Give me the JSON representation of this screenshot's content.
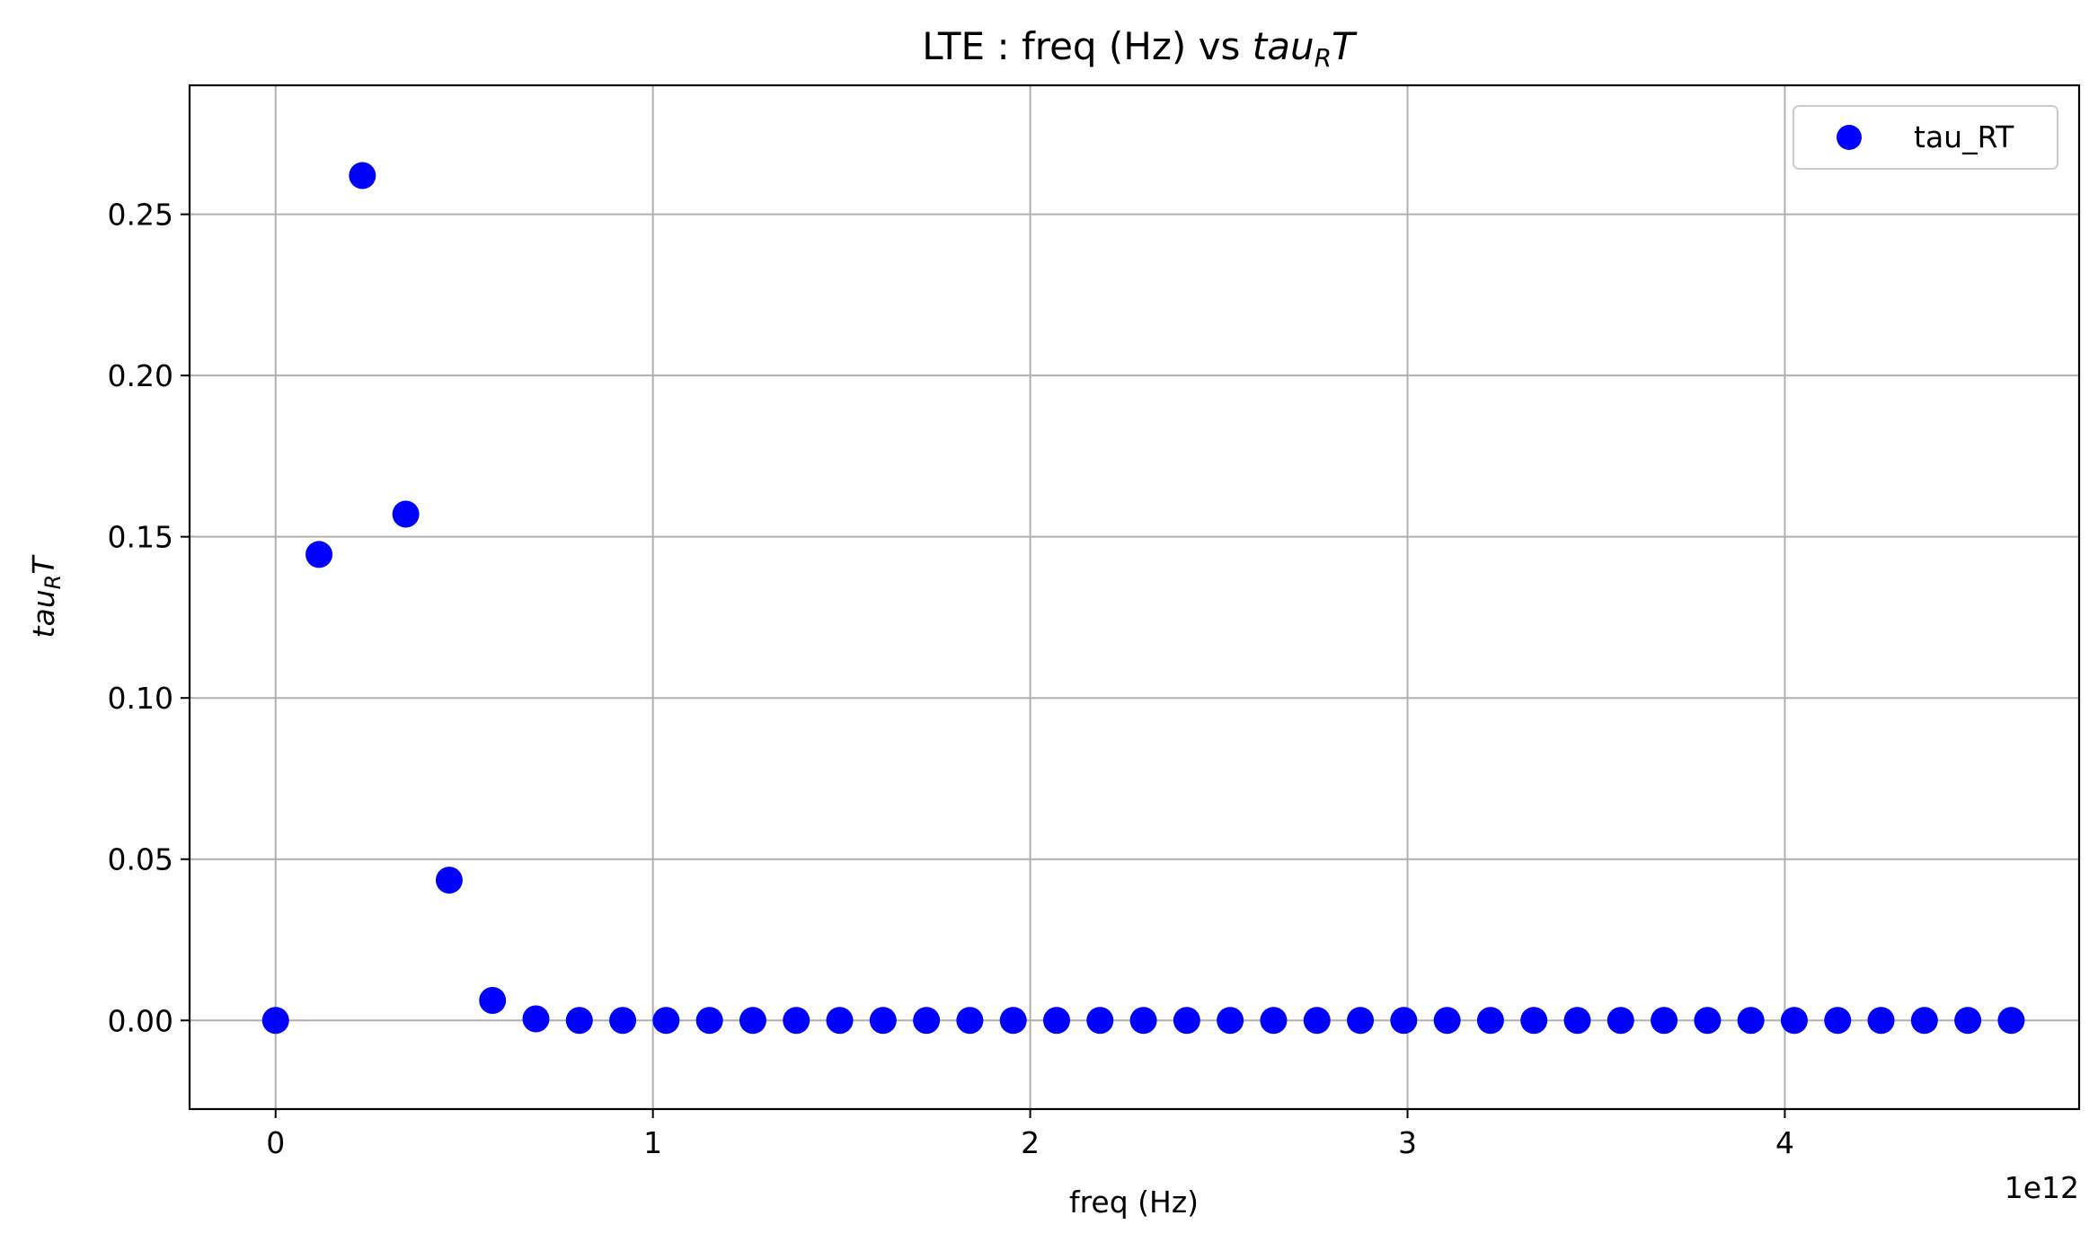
{
  "chart_data": {
    "type": "scatter",
    "title_prefix": "LTE : freq (Hz) vs ",
    "title_math": {
      "base": "tau",
      "sub": "R",
      "post": "T"
    },
    "xlabel": "freq (Hz)",
    "ylabel_math": {
      "base": "tau",
      "sub": "R",
      "post": "T"
    },
    "x_offset_label": "1e12",
    "xlim": [
      -0.228,
      4.78
    ],
    "ylim": [
      -0.0275,
      0.29
    ],
    "x_ticks": [
      0,
      1,
      2,
      3,
      4
    ],
    "x_tick_labels": [
      "0",
      "1",
      "2",
      "3",
      "4"
    ],
    "y_ticks": [
      0.0,
      0.05,
      0.1,
      0.15,
      0.2,
      0.25
    ],
    "y_tick_labels": [
      "0.00",
      "0.05",
      "0.10",
      "0.15",
      "0.20",
      "0.25"
    ],
    "grid": true,
    "legend_position": "top-right",
    "marker_color": "#0000ff",
    "series": [
      {
        "name": "tau_RT",
        "x": [
          0.0,
          0.115,
          0.23,
          0.345,
          0.46,
          0.575,
          0.69,
          0.805,
          0.92,
          1.035,
          1.15,
          1.265,
          1.38,
          1.495,
          1.61,
          1.725,
          1.84,
          1.955,
          2.07,
          2.185,
          2.3,
          2.415,
          2.53,
          2.645,
          2.76,
          2.875,
          2.99,
          3.105,
          3.22,
          3.335,
          3.45,
          3.565,
          3.68,
          3.795,
          3.91,
          4.025,
          4.14,
          4.255,
          4.37,
          4.485,
          4.6
        ],
        "y": [
          0.0,
          0.1445,
          0.262,
          0.157,
          0.0435,
          0.0062,
          0.0005,
          0.0,
          0.0,
          0.0,
          0.0,
          0.0,
          0.0,
          0.0,
          0.0,
          0.0,
          0.0,
          0.0,
          0.0,
          0.0,
          0.0,
          0.0,
          0.0,
          0.0,
          0.0,
          0.0,
          0.0,
          0.0,
          0.0,
          0.0,
          0.0,
          0.0,
          0.0,
          0.0,
          0.0,
          0.0,
          0.0,
          0.0,
          0.0,
          0.0,
          0.0
        ]
      }
    ]
  }
}
